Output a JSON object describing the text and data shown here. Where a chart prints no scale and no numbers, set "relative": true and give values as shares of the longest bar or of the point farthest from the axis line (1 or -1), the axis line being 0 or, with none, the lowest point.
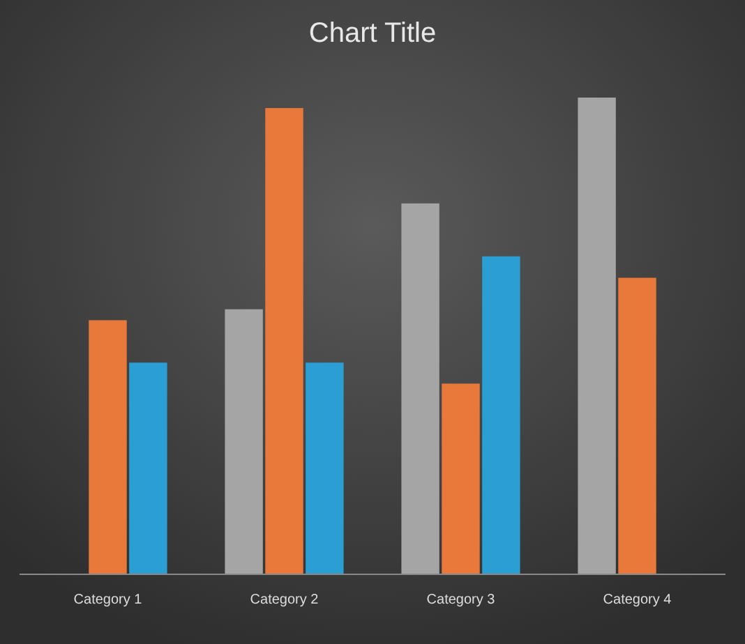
{
  "chart_data": {
    "type": "bar",
    "title": "Chart Title",
    "relative": true,
    "categories": [
      "Category 1",
      "Category 2",
      "Category 3",
      "Category 4"
    ],
    "series": [
      {
        "color": "#a5a5a5",
        "values": [
          null,
          0.556,
          0.778,
          1
        ]
      },
      {
        "color": "#e8793a",
        "values": [
          0.533,
          0.978,
          0.4,
          0.622
        ]
      },
      {
        "color": "#2b9fd4",
        "values": [
          0.444,
          0.444,
          0.667,
          null
        ]
      }
    ]
  }
}
